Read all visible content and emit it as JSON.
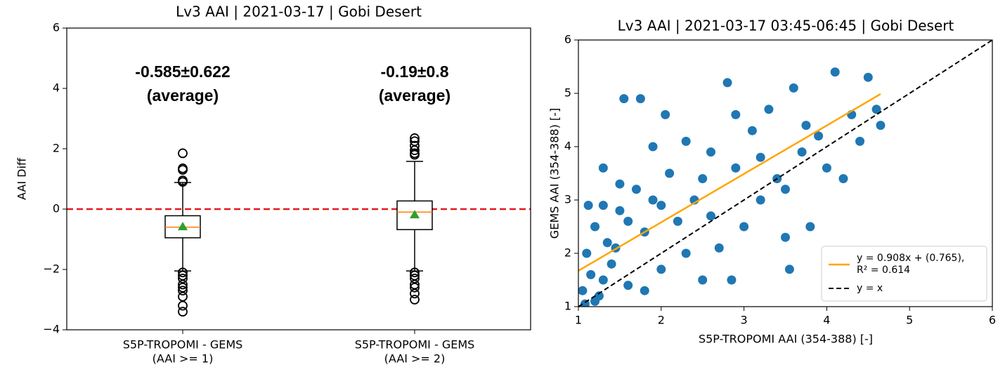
{
  "chart_data": [
    {
      "type": "box",
      "title": "Lv3 AAI | 2021-03-17 | Gobi Desert",
      "y_label": "AAI Diff",
      "categories": [
        [
          "S5P-TROPOMI - GEMS",
          "(AAI >= 1)"
        ],
        [
          "S5P-TROPOMI - GEMS",
          "(AAI >= 2)"
        ]
      ],
      "annotations": [
        [
          "-0.585±0.622",
          "(average)"
        ],
        [
          "-0.19±0.8",
          "(average)"
        ]
      ],
      "boxes": [
        {
          "whislo": -2.05,
          "q1": -0.95,
          "median": -0.6,
          "q3": -0.22,
          "whishi": 0.88,
          "mean": -0.585,
          "fliers": [
            1.85,
            1.35,
            1.3,
            0.95,
            0.9,
            -2.1,
            -2.2,
            -2.3,
            -2.5,
            -2.6,
            -2.7,
            -2.9,
            -3.2,
            -3.4
          ]
        },
        {
          "whislo": -2.05,
          "q1": -0.68,
          "median": -0.1,
          "q3": 0.27,
          "whishi": 1.58,
          "mean": -0.19,
          "fliers": [
            2.35,
            2.25,
            2.1,
            1.95,
            1.85,
            1.8,
            -2.1,
            -2.2,
            -2.3,
            -2.5,
            -2.6,
            -2.8,
            -3.0
          ]
        }
      ],
      "box_color": "#000000",
      "median_color": "#ff7f0e",
      "mean_color": "#2ca02c",
      "hline": 0,
      "hline_color": "#e41a1c",
      "ylim": [
        -4,
        6
      ],
      "yticks": [
        {
          "value": -4,
          "label": "−4"
        },
        {
          "value": -2,
          "label": "−2"
        },
        0,
        2,
        4,
        6
      ]
    },
    {
      "type": "scatter",
      "title": "Lv3 AAI | 2021-03-17 03:45-06:45 | Gobi Desert",
      "x_label": "S5P-TROPOMI AAI (354-388) [-]",
      "y_label": "GEMS AAI (354-388) [-]",
      "color": "#1f77b4",
      "x": [
        1.05,
        1.1,
        1.15,
        1.2,
        1.25,
        1.3,
        1.35,
        1.4,
        1.5,
        1.55,
        1.6,
        1.7,
        1.75,
        1.8,
        1.9,
        2.0,
        2.05,
        2.1,
        2.2,
        2.3,
        2.4,
        2.5,
        2.6,
        2.7,
        2.8,
        2.9,
        3.0,
        3.1,
        3.2,
        3.3,
        3.4,
        3.5,
        3.6,
        3.7,
        3.8,
        3.9,
        4.0,
        4.1,
        4.2,
        4.3,
        4.4,
        4.5,
        4.6,
        4.65,
        1.08,
        1.12,
        1.2,
        1.3,
        1.45,
        1.6,
        1.8,
        2.0,
        2.3,
        2.6,
        2.9,
        3.2,
        3.5,
        3.55,
        3.75,
        2.85,
        1.5,
        1.3,
        1.9,
        2.5
      ],
      "values": [
        1.3,
        2.0,
        1.6,
        2.5,
        1.2,
        3.6,
        2.2,
        1.8,
        2.8,
        4.9,
        1.4,
        3.2,
        4.9,
        2.4,
        3.0,
        1.7,
        4.6,
        3.5,
        2.6,
        4.1,
        3.0,
        1.5,
        3.9,
        2.1,
        5.2,
        3.6,
        2.5,
        4.3,
        3.0,
        4.7,
        3.4,
        2.3,
        5.1,
        3.9,
        2.5,
        4.2,
        3.6,
        5.4,
        3.4,
        4.6,
        4.1,
        5.3,
        4.7,
        4.4,
        1.05,
        2.9,
        1.1,
        1.5,
        2.1,
        2.6,
        1.3,
        2.9,
        2.0,
        2.7,
        4.6,
        3.8,
        3.2,
        1.7,
        4.4,
        1.5,
        3.3,
        2.9,
        4.0,
        3.4
      ],
      "fit": {
        "name": [
          "y = 0.908x + (0.765),",
          "R² = 0.614"
        ],
        "slope": 0.908,
        "intercept": 0.765,
        "x_range": [
          1,
          4.65
        ],
        "color": "#ffa500"
      },
      "identity": {
        "name": "y = x",
        "color": "#000000"
      },
      "legend": "lower right",
      "xlim": [
        1,
        6
      ],
      "ylim": [
        1,
        6
      ],
      "xticks": [
        1,
        2,
        3,
        4,
        5,
        6
      ],
      "yticks": [
        1,
        2,
        3,
        4,
        5,
        6
      ]
    }
  ]
}
